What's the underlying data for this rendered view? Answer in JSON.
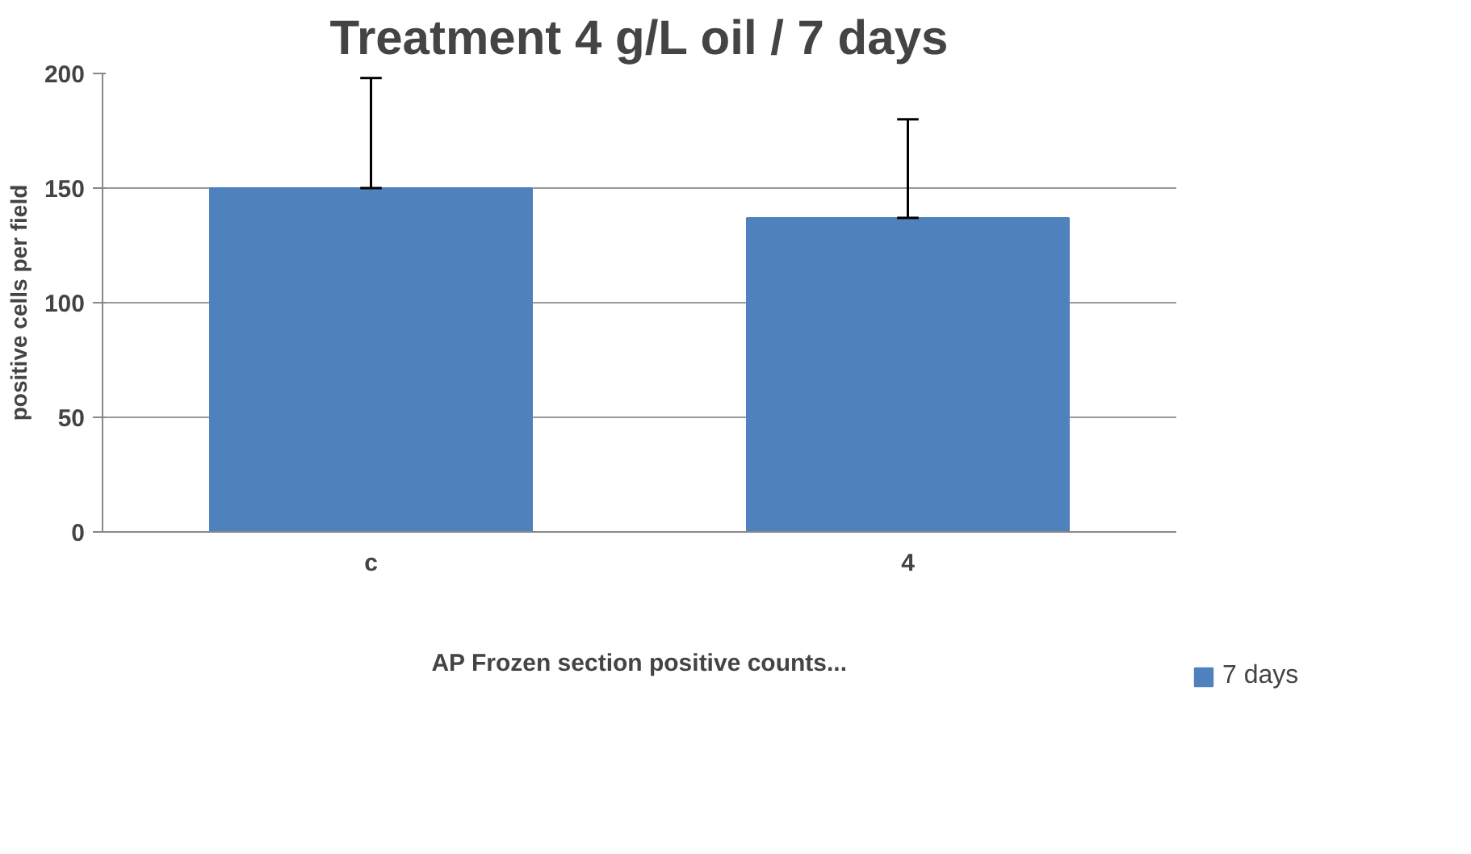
{
  "chart_data": {
    "type": "bar",
    "title": "Treatment 4 g/L oil / 7 days",
    "annotations": [
      "AP Frozen section positive counts..."
    ],
    "ylabel": "positive cells per field",
    "categories": [
      "c",
      "4"
    ],
    "series": [
      {
        "name": "7 days",
        "color": "#4f81bd",
        "values": [
          150,
          137
        ],
        "errors": [
          [
            150,
            198
          ],
          [
            137,
            180
          ]
        ]
      }
    ],
    "ylim": [
      0,
      200
    ],
    "yticks": [
      0,
      50,
      100,
      150,
      200
    ],
    "grid": "y",
    "legend": "right"
  }
}
